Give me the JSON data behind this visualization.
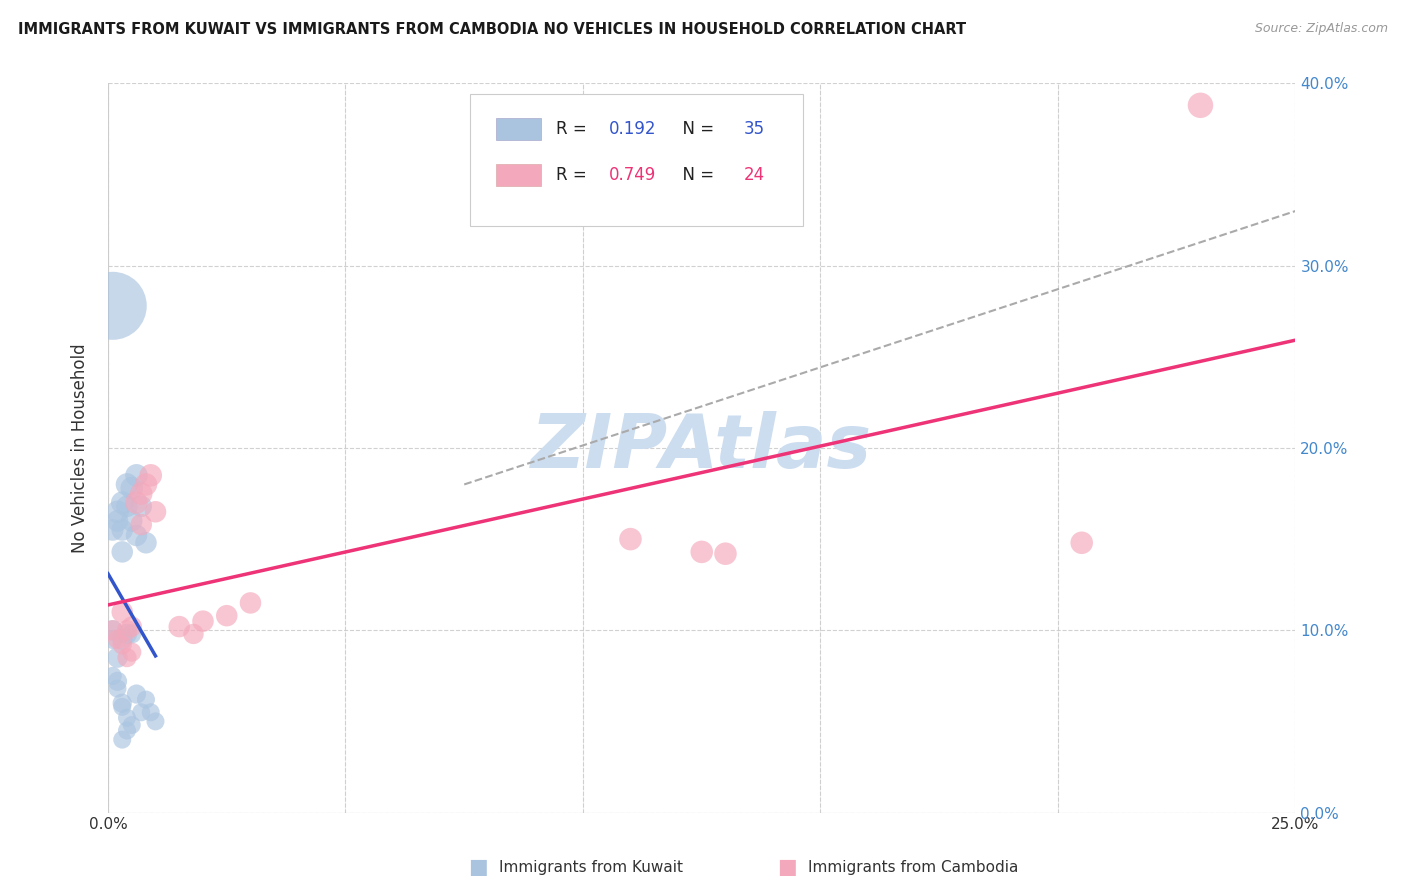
{
  "title": "IMMIGRANTS FROM KUWAIT VS IMMIGRANTS FROM CAMBODIA NO VEHICLES IN HOUSEHOLD CORRELATION CHART",
  "source": "Source: ZipAtlas.com",
  "ylabel": "No Vehicles in Household",
  "xlim": [
    0.0,
    0.25
  ],
  "ylim": [
    0.0,
    0.4
  ],
  "yticks": [
    0.0,
    0.1,
    0.2,
    0.3,
    0.4
  ],
  "xtick_labels_show": [
    "0.0%",
    "25.0%"
  ],
  "ytick_labels_right": [
    "0.0%",
    "10.0%",
    "20.0%",
    "30.0%",
    "40.0%"
  ],
  "legend_color1": "#aac4e0",
  "legend_color2": "#f4a8bb",
  "kuwait_color": "#aac4e0",
  "cambodia_color": "#f4a8bb",
  "kuwait_line_color": "#3355cc",
  "cambodia_line_color": "#ee3377",
  "R_kuwait_text": "0.192",
  "N_kuwait_text": "35",
  "R_cambodia_text": "0.749",
  "N_cambodia_text": "24",
  "watermark": "ZIPAtlas",
  "watermark_color": "#ccddf0",
  "background_color": "#ffffff",
  "grid_color": "#cccccc",
  "kuwait_x": [
    0.001,
    0.001,
    0.001,
    0.002,
    0.002,
    0.002,
    0.002,
    0.003,
    0.003,
    0.003,
    0.003,
    0.003,
    0.003,
    0.004,
    0.004,
    0.004,
    0.004,
    0.005,
    0.005,
    0.005,
    0.005,
    0.006,
    0.006,
    0.006,
    0.007,
    0.007,
    0.008,
    0.008,
    0.009,
    0.01,
    0.001,
    0.002,
    0.003,
    0.004,
    0.001
  ],
  "kuwait_y": [
    0.155,
    0.1,
    0.095,
    0.165,
    0.16,
    0.085,
    0.072,
    0.17,
    0.155,
    0.143,
    0.095,
    0.06,
    0.04,
    0.18,
    0.168,
    0.098,
    0.052,
    0.178,
    0.16,
    0.098,
    0.048,
    0.185,
    0.152,
    0.065,
    0.168,
    0.055,
    0.148,
    0.062,
    0.055,
    0.05,
    0.075,
    0.068,
    0.058,
    0.045,
    0.278
  ],
  "kuwait_size": [
    20,
    18,
    16,
    22,
    20,
    18,
    16,
    22,
    20,
    20,
    18,
    16,
    14,
    22,
    20,
    18,
    14,
    22,
    20,
    16,
    14,
    22,
    20,
    16,
    20,
    14,
    20,
    14,
    14,
    14,
    14,
    14,
    14,
    14,
    200
  ],
  "cambodia_x": [
    0.001,
    0.002,
    0.003,
    0.003,
    0.004,
    0.004,
    0.005,
    0.005,
    0.006,
    0.007,
    0.007,
    0.008,
    0.009,
    0.01,
    0.015,
    0.018,
    0.02,
    0.025,
    0.03,
    0.11,
    0.125,
    0.13,
    0.205,
    0.23
  ],
  "cambodia_y": [
    0.1,
    0.095,
    0.11,
    0.092,
    0.1,
    0.085,
    0.102,
    0.088,
    0.17,
    0.175,
    0.158,
    0.18,
    0.185,
    0.165,
    0.102,
    0.098,
    0.105,
    0.108,
    0.115,
    0.15,
    0.143,
    0.142,
    0.148,
    0.388
  ],
  "cambodia_size": [
    18,
    16,
    20,
    16,
    18,
    16,
    18,
    16,
    22,
    22,
    20,
    22,
    22,
    20,
    20,
    18,
    20,
    20,
    20,
    22,
    22,
    22,
    22,
    28
  ]
}
